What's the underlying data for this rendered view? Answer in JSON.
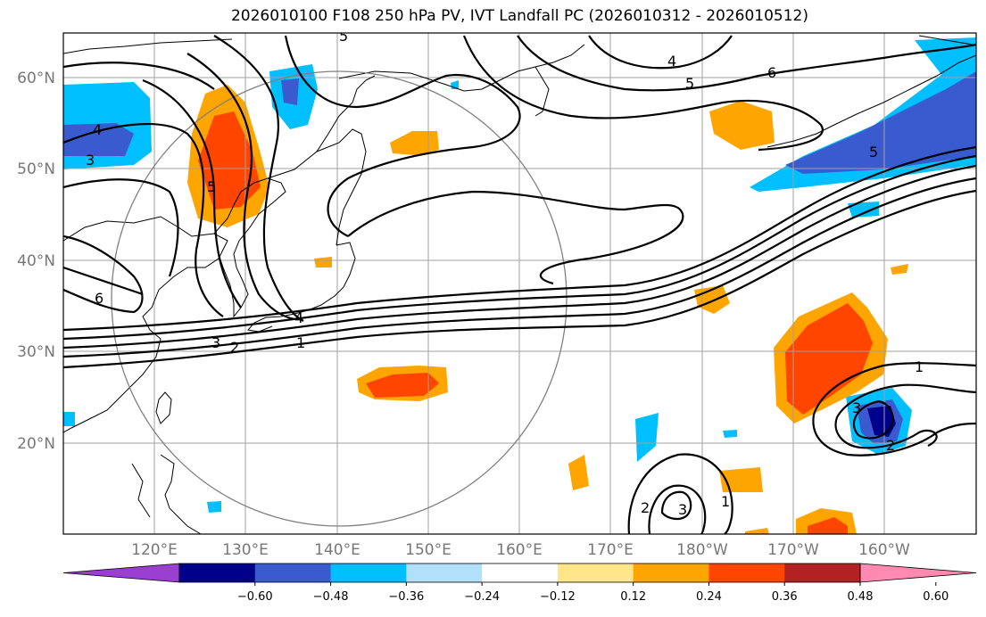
{
  "title": "2026010100 F108 250 hPa PV, IVT Landfall PC (2026010312 - 2026010512)",
  "map": {
    "lat_labels": [
      "60°N",
      "50°N",
      "40°N",
      "30°N",
      "20°N"
    ],
    "lon_labels": [
      "120°E",
      "130°E",
      "140°E",
      "150°E",
      "160°E",
      "170°E",
      "180°W",
      "170°W",
      "160°W"
    ],
    "contour_labels": [
      "5",
      "4",
      "5",
      "6",
      "4",
      "3",
      "5",
      "5",
      "6",
      "4",
      "3",
      "2",
      "1",
      "1",
      "3",
      "2",
      "2",
      "3",
      "1"
    ]
  },
  "colorbar": {
    "ticks": [
      "−0.60",
      "−0.48",
      "−0.36",
      "−0.24",
      "−0.12",
      "0.12",
      "0.24",
      "0.36",
      "0.48",
      "0.60"
    ],
    "colors": [
      "#9a3fcf",
      "#00008b",
      "#3a5bd0",
      "#00bfff",
      "#b0e0fa",
      "#ffffff",
      "#ffe68a",
      "#ffa500",
      "#ff4500",
      "#b22222",
      "#ff89b0"
    ]
  }
}
